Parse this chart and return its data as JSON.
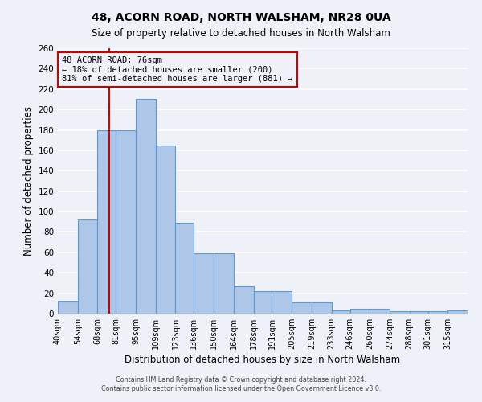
{
  "title": "48, ACORN ROAD, NORTH WALSHAM, NR28 0UA",
  "subtitle": "Size of property relative to detached houses in North Walsham",
  "xlabel": "Distribution of detached houses by size in North Walsham",
  "ylabel": "Number of detached properties",
  "bin_labels": [
    "40sqm",
    "54sqm",
    "68sqm",
    "81sqm",
    "95sqm",
    "109sqm",
    "123sqm",
    "136sqm",
    "150sqm",
    "164sqm",
    "178sqm",
    "191sqm",
    "205sqm",
    "219sqm",
    "233sqm",
    "246sqm",
    "260sqm",
    "274sqm",
    "288sqm",
    "301sqm",
    "315sqm"
  ],
  "bin_edges": [
    40,
    54,
    68,
    81,
    95,
    109,
    123,
    136,
    150,
    164,
    178,
    191,
    205,
    219,
    233,
    246,
    260,
    274,
    288,
    301,
    315,
    329
  ],
  "values": [
    12,
    92,
    180,
    180,
    210,
    165,
    89,
    59,
    59,
    27,
    22,
    22,
    11,
    11,
    3,
    5,
    5,
    2,
    2,
    2,
    3
  ],
  "bar_color": "#aec6e8",
  "bar_edge_color": "#5b9bd5",
  "vline_x": 76,
  "vline_color": "#cc0000",
  "annotation_title": "48 ACORN ROAD: 76sqm",
  "annotation_line1": "← 18% of detached houses are smaller (200)",
  "annotation_line2": "81% of semi-detached houses are larger (881) →",
  "annotation_box_color": "#cc0000",
  "ylim": [
    0,
    260
  ],
  "yticks": [
    0,
    20,
    40,
    60,
    80,
    100,
    120,
    140,
    160,
    180,
    200,
    220,
    240,
    260
  ],
  "footer1": "Contains HM Land Registry data © Crown copyright and database right 2024.",
  "footer2": "Contains public sector information licensed under the Open Government Licence v3.0.",
  "bg_color": "#eef2f8",
  "grid_color": "#ffffff"
}
